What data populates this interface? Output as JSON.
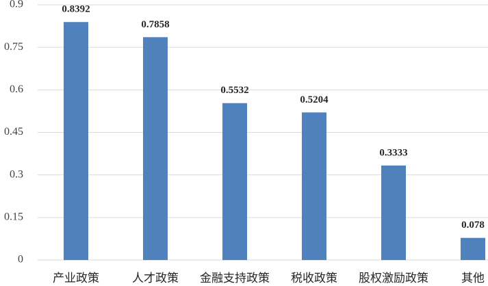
{
  "chart_data": {
    "type": "bar",
    "categories": [
      "产业政策",
      "人才政策",
      "金融支持政策",
      "税收政策",
      "股权激励政策",
      "其他"
    ],
    "values": [
      0.8392,
      0.7858,
      0.5532,
      0.5204,
      0.3333,
      0.078
    ],
    "color": "#4f81bd",
    "ylim": [
      0,
      0.9
    ],
    "yticks": [
      0,
      0.15,
      0.3,
      0.45,
      0.6,
      0.75,
      0.9
    ],
    "grid": true
  }
}
